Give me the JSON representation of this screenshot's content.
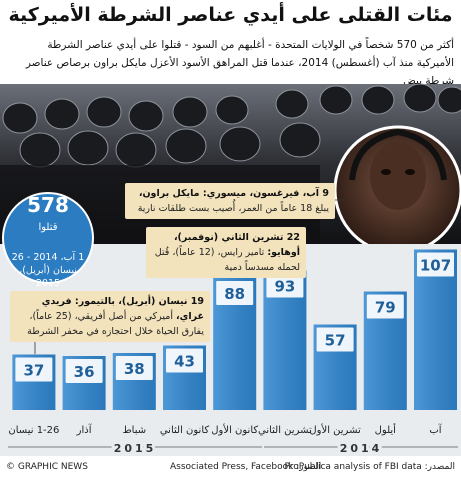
{
  "title": "مئات القتلى على أيدي عناصر الشرطة الأميركية",
  "subtitle": "أكثر من 570 شخصاً في الولايات المتحدة - أغلبهم من السود - قتلوا على أيدي عناصر الشرطة الأميركية منذ آب (أغسطس) 2014، عندما قتل المراهق الأسود الأعزل مايكل براون برصاص عناصر شرطة بيض",
  "summary": {
    "total": 578,
    "label": "قتلوا",
    "period": "1 آب، 2014 - 26 نيسان (أبريل)، 2015"
  },
  "annotations": [
    {
      "bold": "9 آب، فيرغسون، ميسوري: مايكل براون،",
      "text": "يبلغ 18 عاماً من العمر، أُصيب بست طلقات نارية"
    },
    {
      "bold": "22 تشرين الثاني (نوفمبر)، أوهايو:",
      "text": "تامير رايس، (12 عاماً)، قُتل لحمله مسدساً دمية"
    },
    {
      "bold": "19 نيسان (أبريل)، بالتيمور: فريدي غراي،",
      "text": "أميركي من أصل أفريقي، (25 عاماً)، يفارق الحياة خلال احتجازه في مخفر الشرطة"
    }
  ],
  "chart_data": {
    "type": "bar",
    "categories": [
      "آب",
      "أيلول",
      "تشرين الأول",
      "تشرين الثاني",
      "كانون الأول",
      "كانون الثاني",
      "شباط",
      "آذار",
      "1-26 نيسان"
    ],
    "values": [
      107,
      79,
      57,
      93,
      88,
      43,
      38,
      36,
      37
    ],
    "color": "#2f86d0",
    "years": [
      "2014",
      "2015"
    ]
  },
  "footer": {
    "credit": "© GRAPHIC NEWS",
    "photos": "الصور: Associated Press, Facebook",
    "source": "المصدر: ProPublica analysis of FBI data"
  }
}
